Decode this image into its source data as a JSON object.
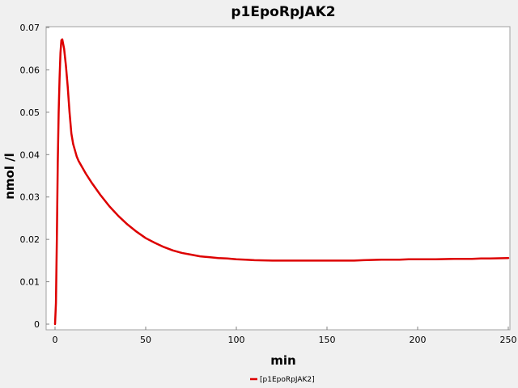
{
  "chart_data": {
    "type": "line",
    "title": "p1EpoRpJAK2",
    "xlabel": "min",
    "ylabel": "nmol /l",
    "xlim": [
      0,
      250
    ],
    "ylim": [
      0,
      0.07
    ],
    "x_ticks": [
      "0",
      "50",
      "100",
      "150",
      "200",
      "250"
    ],
    "y_ticks": [
      "0",
      "0.01",
      "0.02",
      "0.03",
      "0.04",
      "0.05",
      "0.06",
      "0.07"
    ],
    "grid": false,
    "legend_position": "bottom-center",
    "series": [
      {
        "name": "[p1EpoRpJAK2]",
        "color": "#dd0000",
        "x": [
          0,
          0.5,
          1,
          1.5,
          2,
          2.5,
          3,
          3.5,
          4,
          5,
          6,
          7,
          8,
          9,
          10,
          11,
          12,
          13,
          15,
          17,
          20,
          25,
          30,
          35,
          40,
          45,
          50,
          55,
          60,
          65,
          70,
          75,
          80,
          85,
          90,
          95,
          100,
          105,
          110,
          120,
          130,
          140,
          150,
          160,
          165,
          170,
          180,
          190,
          195,
          200,
          210,
          220,
          230,
          235,
          240,
          250
        ],
        "y": [
          0,
          0.005,
          0.02,
          0.038,
          0.05,
          0.058,
          0.064,
          0.067,
          0.0672,
          0.065,
          0.061,
          0.056,
          0.05,
          0.045,
          0.0425,
          0.041,
          0.0395,
          0.0385,
          0.037,
          0.0355,
          0.0335,
          0.0305,
          0.0278,
          0.0255,
          0.0235,
          0.0218,
          0.0203,
          0.0192,
          0.0182,
          0.0174,
          0.0168,
          0.0164,
          0.016,
          0.0158,
          0.0156,
          0.0155,
          0.0153,
          0.0152,
          0.0151,
          0.015,
          0.015,
          0.015,
          0.015,
          0.015,
          0.015,
          0.0151,
          0.0152,
          0.0152,
          0.0153,
          0.0153,
          0.0153,
          0.0154,
          0.0154,
          0.0155,
          0.0155,
          0.0156
        ]
      }
    ]
  }
}
